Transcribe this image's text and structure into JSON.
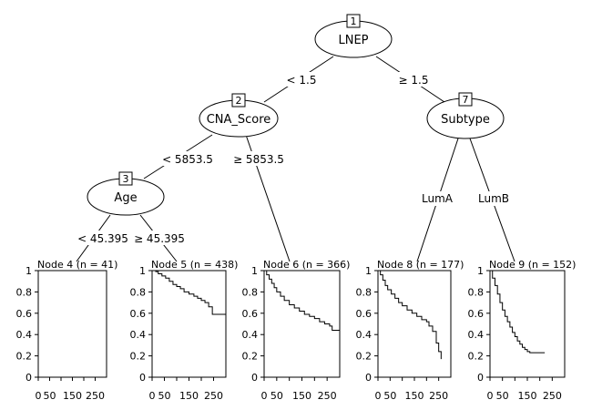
{
  "tree": {
    "inner_nodes": [
      {
        "id": "1",
        "label": "LNEP"
      },
      {
        "id": "2",
        "label": "CNA_Score"
      },
      {
        "id": "3",
        "label": "Age"
      },
      {
        "id": "7",
        "label": "Subtype"
      }
    ],
    "edges": [
      {
        "from": "1",
        "to": "2",
        "label": "< 1.5"
      },
      {
        "from": "1",
        "to": "7",
        "label": "≥ 1.5"
      },
      {
        "from": "2",
        "to": "3",
        "label": "< 5853.5"
      },
      {
        "from": "2",
        "to": "6",
        "label": "≥ 5853.5"
      },
      {
        "from": "3",
        "to": "4",
        "label": "< 45.395"
      },
      {
        "from": "3",
        "to": "5",
        "label": "≥ 45.395"
      },
      {
        "from": "7",
        "to": "8",
        "label": "LumA"
      },
      {
        "from": "7",
        "to": "9",
        "label": "LumB"
      }
    ]
  },
  "chart_data": {
    "type": "line",
    "y_ticks": [
      "0",
      "0.2",
      "0.4",
      "0.6",
      "0.8",
      "1"
    ],
    "x_ticks": [
      "0",
      "50",
      "150",
      "250"
    ],
    "x_tick_values": [
      0,
      50,
      100,
      150,
      200,
      250
    ],
    "xlim": [
      0,
      300
    ],
    "ylim": [
      0,
      1
    ],
    "terminal_nodes": [
      {
        "id": "4",
        "title": "Node 4 (n = 41)",
        "x": [],
        "y": []
      },
      {
        "id": "5",
        "title": "Node 5 (n = 438)",
        "x": [
          0,
          15,
          25,
          40,
          55,
          70,
          85,
          100,
          115,
          130,
          150,
          170,
          185,
          200,
          215,
          230,
          245,
          300
        ],
        "y": [
          1,
          0.99,
          0.97,
          0.95,
          0.93,
          0.9,
          0.87,
          0.85,
          0.83,
          0.8,
          0.78,
          0.76,
          0.74,
          0.72,
          0.7,
          0.66,
          0.59,
          0.59
        ]
      },
      {
        "id": "6",
        "title": "Node 6 (n = 366)",
        "x": [
          0,
          10,
          20,
          30,
          40,
          50,
          65,
          80,
          100,
          120,
          140,
          160,
          180,
          200,
          220,
          240,
          260,
          270,
          300
        ],
        "y": [
          1,
          0.96,
          0.92,
          0.88,
          0.84,
          0.8,
          0.76,
          0.72,
          0.68,
          0.65,
          0.62,
          0.59,
          0.57,
          0.55,
          0.52,
          0.5,
          0.48,
          0.44,
          0.44
        ]
      },
      {
        "id": "8",
        "title": "Node 8 (n = 177)",
        "x": [
          0,
          10,
          20,
          30,
          40,
          55,
          70,
          85,
          100,
          120,
          140,
          160,
          180,
          200,
          210,
          225,
          240,
          250,
          260
        ],
        "y": [
          1,
          0.96,
          0.91,
          0.86,
          0.82,
          0.78,
          0.74,
          0.7,
          0.67,
          0.63,
          0.6,
          0.57,
          0.54,
          0.52,
          0.48,
          0.43,
          0.32,
          0.24,
          0.17
        ]
      },
      {
        "id": "9",
        "title": "Node 9 (n = 152)",
        "x": [
          0,
          10,
          20,
          30,
          40,
          50,
          60,
          70,
          80,
          90,
          100,
          110,
          120,
          130,
          140,
          150,
          160,
          170,
          220
        ],
        "y": [
          1,
          0.93,
          0.86,
          0.78,
          0.7,
          0.63,
          0.57,
          0.52,
          0.47,
          0.42,
          0.38,
          0.34,
          0.31,
          0.28,
          0.26,
          0.24,
          0.23,
          0.23,
          0.23
        ]
      }
    ]
  }
}
